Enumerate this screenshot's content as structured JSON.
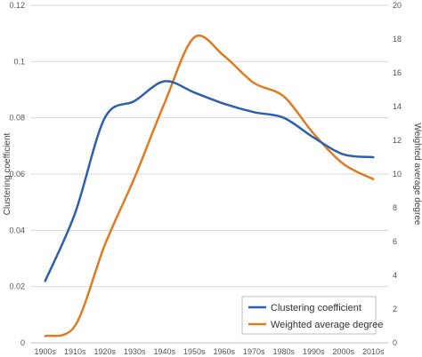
{
  "chart_data": {
    "type": "line",
    "title": "",
    "xlabel": "",
    "ylabel": "Clustering coefficient",
    "y2label": "Weighted average degree",
    "categories": [
      "1900s",
      "1910s",
      "1920s",
      "1930s",
      "1940s",
      "1950s",
      "1960s",
      "1970s",
      "1980s",
      "1990s",
      "2000s",
      "2010s"
    ],
    "ylim": [
      0,
      0.12
    ],
    "y2lim": [
      0,
      20
    ],
    "yticks": [
      "0",
      "0.02",
      "0.04",
      "0.06",
      "0.08",
      "0.1",
      "0.12"
    ],
    "y2ticks": [
      "0",
      "2",
      "4",
      "6",
      "8",
      "10",
      "12",
      "14",
      "16",
      "18",
      "20"
    ],
    "grid": true,
    "legend_position": "bottom-right",
    "series": [
      {
        "name": "Clustering coefficient",
        "axis": "left",
        "color": "#2e5fae",
        "values": [
          0.022,
          0.046,
          0.08,
          0.086,
          0.093,
          0.089,
          0.085,
          0.082,
          0.08,
          0.073,
          0.067,
          0.066
        ]
      },
      {
        "name": "Weighted average degree",
        "axis": "right",
        "color": "#e07b22",
        "values": [
          0.4,
          1.0,
          5.8,
          9.8,
          14.2,
          18.1,
          17.0,
          15.4,
          14.6,
          12.4,
          10.6,
          9.7
        ]
      }
    ]
  }
}
